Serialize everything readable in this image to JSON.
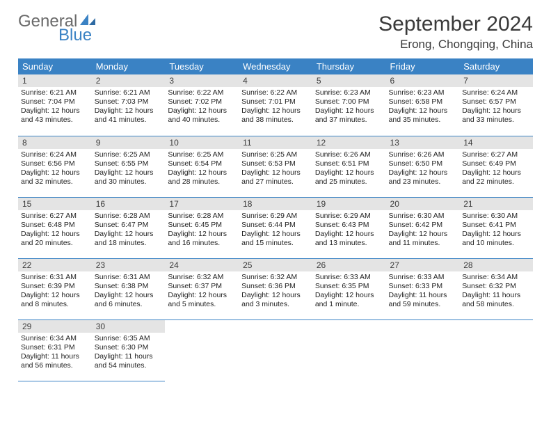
{
  "logo": {
    "line1": "General",
    "line2": "Blue"
  },
  "title": "September 2024",
  "location": "Erong, Chongqing, China",
  "weekdays": [
    "Sunday",
    "Monday",
    "Tuesday",
    "Wednesday",
    "Thursday",
    "Friday",
    "Saturday"
  ],
  "colors": {
    "header_bg": "#3a82c4",
    "header_fg": "#ffffff",
    "daynum_bg": "#e4e4e4",
    "rule": "#3a82c4",
    "logo_gray": "#6a6a6a",
    "logo_blue": "#3a82c4"
  },
  "days": [
    {
      "n": "1",
      "sr": "6:21 AM",
      "ss": "7:04 PM",
      "dl": "12 hours and 43 minutes."
    },
    {
      "n": "2",
      "sr": "6:21 AM",
      "ss": "7:03 PM",
      "dl": "12 hours and 41 minutes."
    },
    {
      "n": "3",
      "sr": "6:22 AM",
      "ss": "7:02 PM",
      "dl": "12 hours and 40 minutes."
    },
    {
      "n": "4",
      "sr": "6:22 AM",
      "ss": "7:01 PM",
      "dl": "12 hours and 38 minutes."
    },
    {
      "n": "5",
      "sr": "6:23 AM",
      "ss": "7:00 PM",
      "dl": "12 hours and 37 minutes."
    },
    {
      "n": "6",
      "sr": "6:23 AM",
      "ss": "6:58 PM",
      "dl": "12 hours and 35 minutes."
    },
    {
      "n": "7",
      "sr": "6:24 AM",
      "ss": "6:57 PM",
      "dl": "12 hours and 33 minutes."
    },
    {
      "n": "8",
      "sr": "6:24 AM",
      "ss": "6:56 PM",
      "dl": "12 hours and 32 minutes."
    },
    {
      "n": "9",
      "sr": "6:25 AM",
      "ss": "6:55 PM",
      "dl": "12 hours and 30 minutes."
    },
    {
      "n": "10",
      "sr": "6:25 AM",
      "ss": "6:54 PM",
      "dl": "12 hours and 28 minutes."
    },
    {
      "n": "11",
      "sr": "6:25 AM",
      "ss": "6:53 PM",
      "dl": "12 hours and 27 minutes."
    },
    {
      "n": "12",
      "sr": "6:26 AM",
      "ss": "6:51 PM",
      "dl": "12 hours and 25 minutes."
    },
    {
      "n": "13",
      "sr": "6:26 AM",
      "ss": "6:50 PM",
      "dl": "12 hours and 23 minutes."
    },
    {
      "n": "14",
      "sr": "6:27 AM",
      "ss": "6:49 PM",
      "dl": "12 hours and 22 minutes."
    },
    {
      "n": "15",
      "sr": "6:27 AM",
      "ss": "6:48 PM",
      "dl": "12 hours and 20 minutes."
    },
    {
      "n": "16",
      "sr": "6:28 AM",
      "ss": "6:47 PM",
      "dl": "12 hours and 18 minutes."
    },
    {
      "n": "17",
      "sr": "6:28 AM",
      "ss": "6:45 PM",
      "dl": "12 hours and 16 minutes."
    },
    {
      "n": "18",
      "sr": "6:29 AM",
      "ss": "6:44 PM",
      "dl": "12 hours and 15 minutes."
    },
    {
      "n": "19",
      "sr": "6:29 AM",
      "ss": "6:43 PM",
      "dl": "12 hours and 13 minutes."
    },
    {
      "n": "20",
      "sr": "6:30 AM",
      "ss": "6:42 PM",
      "dl": "12 hours and 11 minutes."
    },
    {
      "n": "21",
      "sr": "6:30 AM",
      "ss": "6:41 PM",
      "dl": "12 hours and 10 minutes."
    },
    {
      "n": "22",
      "sr": "6:31 AM",
      "ss": "6:39 PM",
      "dl": "12 hours and 8 minutes."
    },
    {
      "n": "23",
      "sr": "6:31 AM",
      "ss": "6:38 PM",
      "dl": "12 hours and 6 minutes."
    },
    {
      "n": "24",
      "sr": "6:32 AM",
      "ss": "6:37 PM",
      "dl": "12 hours and 5 minutes."
    },
    {
      "n": "25",
      "sr": "6:32 AM",
      "ss": "6:36 PM",
      "dl": "12 hours and 3 minutes."
    },
    {
      "n": "26",
      "sr": "6:33 AM",
      "ss": "6:35 PM",
      "dl": "12 hours and 1 minute."
    },
    {
      "n": "27",
      "sr": "6:33 AM",
      "ss": "6:33 PM",
      "dl": "11 hours and 59 minutes."
    },
    {
      "n": "28",
      "sr": "6:34 AM",
      "ss": "6:32 PM",
      "dl": "11 hours and 58 minutes."
    },
    {
      "n": "29",
      "sr": "6:34 AM",
      "ss": "6:31 PM",
      "dl": "11 hours and 56 minutes."
    },
    {
      "n": "30",
      "sr": "6:35 AM",
      "ss": "6:30 PM",
      "dl": "11 hours and 54 minutes."
    }
  ],
  "labels": {
    "sunrise": "Sunrise:",
    "sunset": "Sunset:",
    "daylight": "Daylight:"
  }
}
